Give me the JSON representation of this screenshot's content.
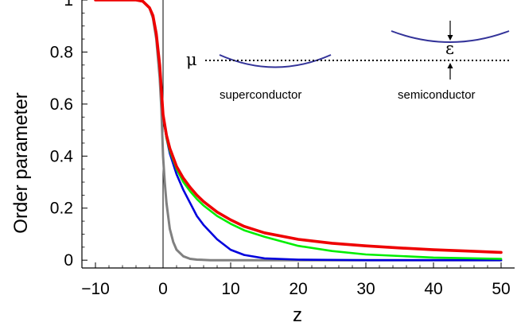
{
  "chart_data": {
    "type": "line",
    "xlabel": "z",
    "ylabel": "Order parameter",
    "xlim": [
      -12,
      52
    ],
    "ylim": [
      -0.03,
      1.0
    ],
    "xticks": [
      -10,
      0,
      10,
      20,
      30,
      40,
      50
    ],
    "xtick_labels": [
      "−10",
      "0",
      "10",
      "20",
      "30",
      "40",
      "50"
    ],
    "yticks": [
      0,
      0.2,
      0.4,
      0.6,
      0.8,
      1
    ],
    "ytick_labels": [
      "0",
      "0.2",
      "0.4",
      "0.6",
      "0.8",
      "1"
    ],
    "grid": false,
    "vertical_line_x": 0,
    "series": [
      {
        "color": "#808080",
        "x": [
          -10,
          -4,
          -3,
          -2,
          -1.5,
          -1,
          -0.5,
          -0.25,
          0,
          0.25,
          0.5,
          1,
          1.5,
          2,
          3,
          4,
          5,
          7,
          10,
          20,
          50
        ],
        "y": [
          1.0,
          1.0,
          0.995,
          0.97,
          0.93,
          0.85,
          0.7,
          0.58,
          0.4,
          0.3,
          0.22,
          0.12,
          0.07,
          0.04,
          0.015,
          0.005,
          0.002,
          0.0,
          0.0,
          0.0,
          0.0
        ]
      },
      {
        "color": "#0000dd",
        "x": [
          -10,
          -4,
          -3,
          -2,
          -1.5,
          -1,
          -0.5,
          0,
          0.5,
          1,
          2,
          3,
          4,
          5,
          6,
          8,
          10,
          12,
          15,
          20,
          30,
          50
        ],
        "y": [
          1.0,
          1.0,
          0.995,
          0.97,
          0.94,
          0.87,
          0.75,
          0.56,
          0.47,
          0.41,
          0.33,
          0.27,
          0.22,
          0.17,
          0.135,
          0.08,
          0.04,
          0.02,
          0.007,
          0.002,
          0.0,
          0.0
        ]
      },
      {
        "color": "#00ee00",
        "x": [
          -10,
          -4,
          -3,
          -2,
          -1.5,
          -1,
          -0.5,
          0,
          0.5,
          1,
          2,
          3,
          4,
          5,
          6,
          8,
          10,
          12,
          15,
          20,
          25,
          30,
          40,
          50
        ],
        "y": [
          1.0,
          1.0,
          0.995,
          0.97,
          0.94,
          0.87,
          0.75,
          0.56,
          0.47,
          0.42,
          0.35,
          0.3,
          0.265,
          0.235,
          0.21,
          0.17,
          0.14,
          0.115,
          0.09,
          0.055,
          0.035,
          0.022,
          0.01,
          0.005
        ]
      },
      {
        "color": "#ee0000",
        "x": [
          -10,
          -4,
          -3,
          -2,
          -1.5,
          -1,
          -0.5,
          0,
          0.5,
          1,
          2,
          3,
          4,
          5,
          6,
          8,
          10,
          12,
          15,
          20,
          25,
          30,
          35,
          40,
          45,
          50
        ],
        "y": [
          1.0,
          1.0,
          0.995,
          0.97,
          0.94,
          0.87,
          0.75,
          0.56,
          0.48,
          0.43,
          0.36,
          0.315,
          0.28,
          0.25,
          0.225,
          0.185,
          0.155,
          0.13,
          0.105,
          0.08,
          0.065,
          0.055,
          0.047,
          0.04,
          0.035,
          0.03
        ]
      }
    ]
  },
  "inset": {
    "mu_symbol": "μ",
    "epsilon_symbol": "ε",
    "left_label": "superconductor",
    "right_label": "semiconductor",
    "band_color": "#333399"
  }
}
